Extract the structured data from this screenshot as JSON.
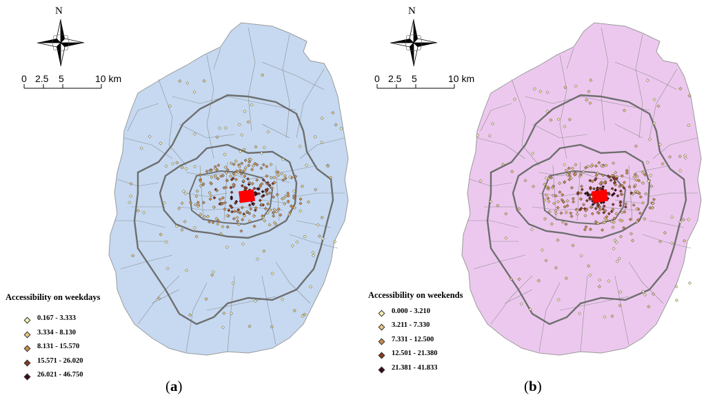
{
  "panels": [
    {
      "id": "a",
      "fill": "#c6d9f1",
      "north": "N",
      "scale_labels": [
        "0",
        "2.5",
        "5",
        "10 km"
      ],
      "legend_title": "Accessibility on weekdays",
      "legend": [
        {
          "label": "0.167 - 3.333",
          "color": "#f5f0b0"
        },
        {
          "label": "3.334 - 8.130",
          "color": "#e7c88a"
        },
        {
          "label": "8.131 - 15.570",
          "color": "#c98e54"
        },
        {
          "label": "15.571 - 26.020",
          "color": "#8a3a22"
        },
        {
          "label": "26.021 - 46.750",
          "color": "#3a0a1a"
        }
      ],
      "caption": "a"
    },
    {
      "id": "b",
      "fill": "#ecc8ee",
      "north": "N",
      "scale_labels": [
        "0",
        "2.5",
        "5",
        "10 km"
      ],
      "legend_title": "Accessibility on weekends",
      "legend": [
        {
          "label": "0.000 - 3.210",
          "color": "#f5f0b0"
        },
        {
          "label": "3.211 - 7.330",
          "color": "#e7c88a"
        },
        {
          "label": "7.331 - 12.500",
          "color": "#c98e54"
        },
        {
          "label": "12.501 - 21.380",
          "color": "#8a3a22"
        },
        {
          "label": "21.381 - 41.833",
          "color": "#3a0a1a"
        }
      ],
      "caption": "b"
    }
  ],
  "center_marker_color": "#ff0000",
  "ring_color": "#6e6e6e"
}
